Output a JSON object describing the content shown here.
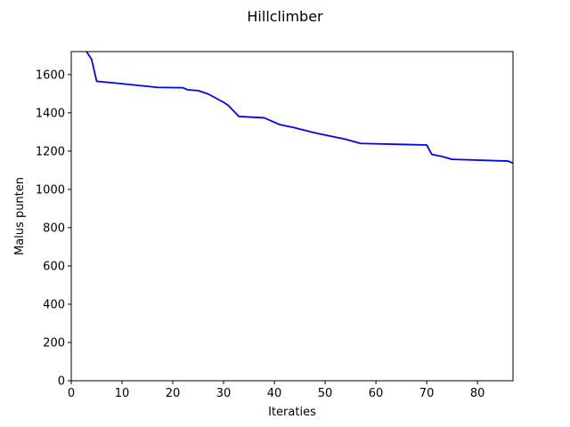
{
  "chart_data": {
    "type": "line",
    "title": "Hillclimber",
    "xlabel": "Iteraties",
    "ylabel": "Malus punten",
    "xlim": [
      0,
      87
    ],
    "ylim": [
      0,
      1720
    ],
    "xticks": [
      0,
      10,
      20,
      30,
      40,
      50,
      60,
      70,
      80
    ],
    "yticks": [
      0,
      200,
      400,
      600,
      800,
      1000,
      1200,
      1400,
      1600
    ],
    "grid": false,
    "series": [
      {
        "color": "#0000ff",
        "x": [
          3,
          4,
          5,
          10,
          17,
          22,
          23,
          25,
          27,
          30,
          31,
          33,
          38,
          41,
          44,
          48,
          54,
          57,
          65,
          70,
          71,
          73,
          75,
          86,
          87
        ],
        "y": [
          1720,
          1680,
          1565,
          1552,
          1533,
          1531,
          1520,
          1516,
          1498,
          1455,
          1437,
          1381,
          1374,
          1339,
          1322,
          1295,
          1262,
          1240,
          1235,
          1232,
          1183,
          1172,
          1157,
          1148,
          1137
        ]
      }
    ]
  }
}
